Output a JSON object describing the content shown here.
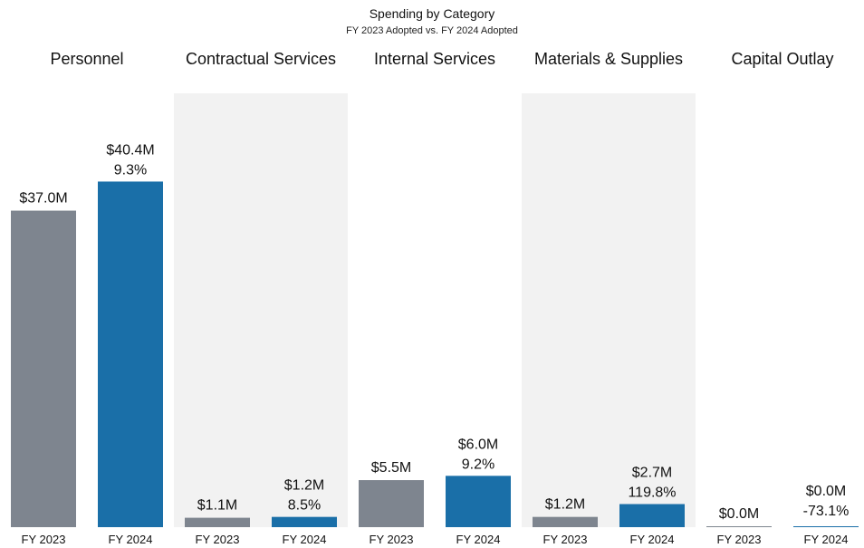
{
  "chart_data": {
    "type": "bar",
    "title": "Spending by Category",
    "subtitle": "FY 2023 Adopted vs. FY 2024 Adopted",
    "categories": [
      "Personnel",
      "Contractual Services",
      "Internal Services",
      "Materials & Supplies",
      "Capital Outlay"
    ],
    "x_tick_labels": [
      "FY 2023",
      "FY 2024"
    ],
    "series": [
      {
        "name": "FY 2023",
        "values": [
          37.0,
          1.1,
          5.5,
          1.2,
          0.0
        ],
        "value_labels": [
          "$37.0M",
          "$1.1M",
          "$5.5M",
          "$1.2M",
          "$0.0M"
        ]
      },
      {
        "name": "FY 2024",
        "values": [
          40.4,
          1.2,
          6.0,
          2.7,
          0.0
        ],
        "value_labels": [
          "$40.4M",
          "$1.2M",
          "$6.0M",
          "$2.7M",
          "$0.0M"
        ]
      }
    ],
    "pct_change_labels": [
      "9.3%",
      "8.5%",
      "9.2%",
      "119.8%",
      "-73.1%"
    ],
    "ylim": [
      0,
      45
    ],
    "grid": false,
    "legend": "none",
    "shaded_categories": [
      "Contractual Services",
      "Materials & Supplies"
    ]
  },
  "colors": {
    "fy2023": "#7e858f",
    "fy2024": "#1a6fa8",
    "band": "#f2f2f2",
    "text": "#111111"
  }
}
